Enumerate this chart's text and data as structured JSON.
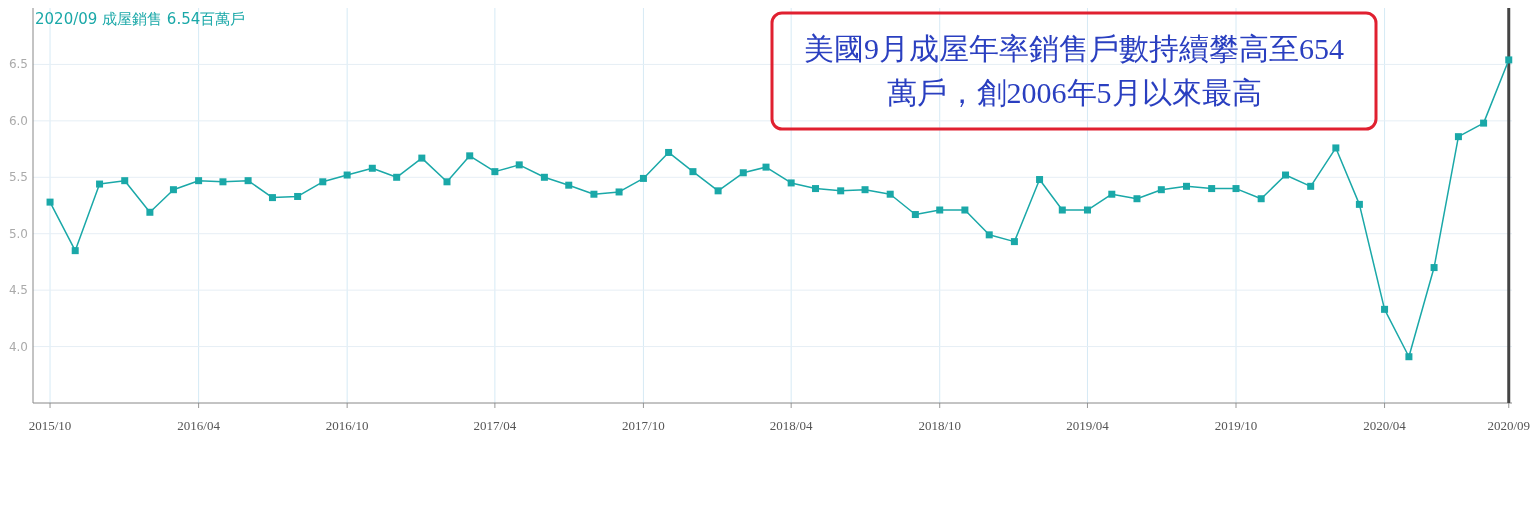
{
  "chart_data": {
    "type": "line",
    "title": "2020/09 成屋銷售 6.54百萬戶",
    "annotations": [
      "美國9月成屋年率銷售戶數持續攀高至654萬戶，創2006年5月以來最高"
    ],
    "x": [
      "2015-10",
      "2015-11",
      "2015-12",
      "2016-01",
      "2016-02",
      "2016-03",
      "2016-04",
      "2016-05",
      "2016-06",
      "2016-07",
      "2016-08",
      "2016-09",
      "2016-10",
      "2016-11",
      "2016-12",
      "2017-01",
      "2017-02",
      "2017-03",
      "2017-04",
      "2017-05",
      "2017-06",
      "2017-07",
      "2017-08",
      "2017-09",
      "2017-10",
      "2017-11",
      "2017-12",
      "2018-01",
      "2018-02",
      "2018-03",
      "2018-04",
      "2018-05",
      "2018-06",
      "2018-07",
      "2018-08",
      "2018-09",
      "2018-10",
      "2018-11",
      "2018-12",
      "2019-01",
      "2019-02",
      "2019-03",
      "2019-04",
      "2019-05",
      "2019-06",
      "2019-07",
      "2019-08",
      "2019-09",
      "2019-10",
      "2019-11",
      "2019-12",
      "2020-01",
      "2020-02",
      "2020-03",
      "2020-04",
      "2020-05",
      "2020-06",
      "2020-07",
      "2020-08",
      "2020-09"
    ],
    "series": [
      {
        "color": "#1aa8a8",
        "values": [
          5.28,
          4.85,
          5.44,
          5.47,
          5.19,
          5.39,
          5.47,
          5.46,
          5.47,
          5.32,
          5.33,
          5.46,
          5.52,
          5.58,
          5.5,
          5.67,
          5.46,
          5.69,
          5.55,
          5.61,
          5.5,
          5.43,
          5.35,
          5.37,
          5.49,
          5.72,
          5.55,
          5.38,
          5.54,
          5.59,
          5.45,
          5.4,
          5.38,
          5.39,
          5.35,
          5.17,
          5.21,
          5.21,
          4.99,
          4.93,
          5.48,
          5.21,
          5.21,
          5.35,
          5.31,
          5.39,
          5.42,
          5.4,
          5.4,
          5.31,
          5.52,
          5.42,
          5.76,
          5.26,
          4.33,
          3.91,
          4.7,
          5.86,
          5.98,
          6.54
        ]
      }
    ],
    "xlim": [
      "2015-09-10",
      "2020-09-05"
    ],
    "xticks": [
      {
        "value": "2015-10",
        "label": "2015/10"
      },
      {
        "value": "2016-04",
        "label": "2016/04"
      },
      {
        "value": "2016-10",
        "label": "2016/10"
      },
      {
        "value": "2017-04",
        "label": "2017/04"
      },
      {
        "value": "2017-10",
        "label": "2017/10"
      },
      {
        "value": "2018-04",
        "label": "2018/04"
      },
      {
        "value": "2018-10",
        "label": "2018/10"
      },
      {
        "value": "2019-04",
        "label": "2019/04"
      },
      {
        "value": "2019-10",
        "label": "2019/10"
      },
      {
        "value": "2020-04",
        "label": "2020/04"
      },
      {
        "value": "2020-09",
        "label": "2020/09"
      }
    ],
    "ylim": [
      3.5,
      7.0
    ],
    "yticks": [
      {
        "value": 4,
        "label": "4.0"
      },
      {
        "value": 4.5,
        "label": "4.5"
      },
      {
        "value": 5,
        "label": "5.0"
      },
      {
        "value": 5.5,
        "label": "5.5"
      },
      {
        "value": 6,
        "label": "6.0"
      },
      {
        "value": 6.5,
        "label": "6.5"
      }
    ],
    "ref_lines": [
      {
        "axis": "x",
        "value": "2020-09",
        "color": "#444444"
      }
    ],
    "grid": true,
    "marker": "square"
  }
}
